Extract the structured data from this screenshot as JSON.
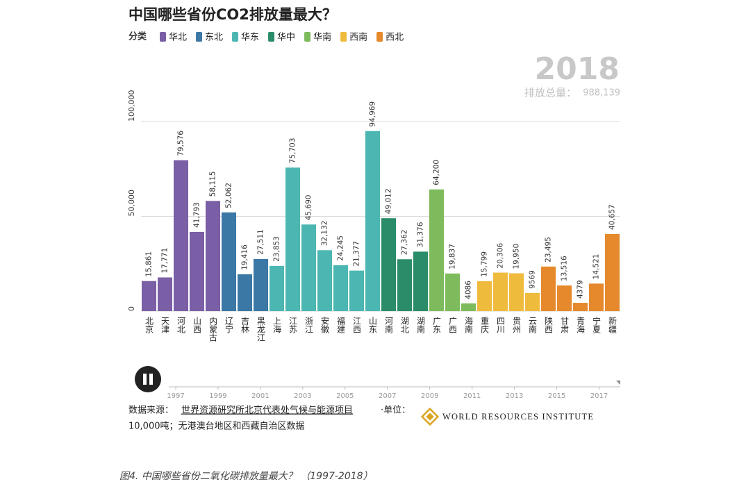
{
  "chart_data": {
    "type": "bar",
    "title": "中国哪些省份CO2排放量最大？",
    "legend_title": "分类",
    "year": 2018,
    "total_label": "排放总量：",
    "total": {
      "value": 988139,
      "label": "988,139"
    },
    "categories": [
      "北京",
      "天津",
      "河北",
      "山西",
      "内蒙古",
      "辽宁",
      "吉林",
      "黑龙江",
      "上海",
      "江苏",
      "浙江",
      "安徽",
      "福建",
      "江西",
      "山东",
      "河南",
      "湖北",
      "湖南",
      "广东",
      "广西",
      "海南",
      "重庆",
      "四川",
      "贵州",
      "云南",
      "陕西",
      "甘肃",
      "青海",
      "宁夏",
      "新疆"
    ],
    "series": [
      {
        "name": "华北",
        "color": "#7a5ea6",
        "values": [
          15861,
          17771,
          79576,
          41793,
          58115,
          null,
          null,
          null,
          null,
          null,
          null,
          null,
          null,
          null,
          null,
          null,
          null,
          null,
          null,
          null,
          null,
          null,
          null,
          null,
          null,
          null,
          null,
          null,
          null,
          null
        ],
        "value_labels": [
          "15,861",
          "17,771",
          "79,576",
          "41,793",
          "58,115",
          null,
          null,
          null,
          null,
          null,
          null,
          null,
          null,
          null,
          null,
          null,
          null,
          null,
          null,
          null,
          null,
          null,
          null,
          null,
          null,
          null,
          null,
          null,
          null,
          null
        ]
      },
      {
        "name": "东北",
        "color": "#3b78a6",
        "values": [
          null,
          null,
          null,
          null,
          null,
          52062,
          19416,
          27511,
          null,
          null,
          null,
          null,
          null,
          null,
          null,
          null,
          null,
          null,
          null,
          null,
          null,
          null,
          null,
          null,
          null,
          null,
          null,
          null,
          null,
          null
        ],
        "value_labels": [
          null,
          null,
          null,
          null,
          null,
          "52,062",
          "19,416",
          "27,511",
          null,
          null,
          null,
          null,
          null,
          null,
          null,
          null,
          null,
          null,
          null,
          null,
          null,
          null,
          null,
          null,
          null,
          null,
          null,
          null,
          null,
          null
        ]
      },
      {
        "name": "华东",
        "color": "#4cb7b2",
        "values": [
          null,
          null,
          null,
          null,
          null,
          null,
          null,
          null,
          23853,
          75703,
          45690,
          32132,
          24245,
          21377,
          94969,
          null,
          null,
          null,
          null,
          null,
          null,
          null,
          null,
          null,
          null,
          null,
          null,
          null,
          null,
          null
        ],
        "value_labels": [
          null,
          null,
          null,
          null,
          null,
          null,
          null,
          null,
          "23,853",
          "75,703",
          "45,690",
          "32,132",
          "24,245",
          "21,377",
          "94,969",
          null,
          null,
          null,
          null,
          null,
          null,
          null,
          null,
          null,
          null,
          null,
          null,
          null,
          null,
          null
        ]
      },
      {
        "name": "华中",
        "color": "#2a8c68",
        "values": [
          null,
          null,
          null,
          null,
          null,
          null,
          null,
          null,
          null,
          null,
          null,
          null,
          null,
          null,
          null,
          49012,
          27362,
          31376,
          null,
          null,
          null,
          null,
          null,
          null,
          null,
          null,
          null,
          null,
          null,
          null
        ],
        "value_labels": [
          null,
          null,
          null,
          null,
          null,
          null,
          null,
          null,
          null,
          null,
          null,
          null,
          null,
          null,
          null,
          "49,012",
          "27,362",
          "31,376",
          null,
          null,
          null,
          null,
          null,
          null,
          null,
          null,
          null,
          null,
          null,
          null
        ]
      },
      {
        "name": "华南",
        "color": "#7dbb5c",
        "values": [
          null,
          null,
          null,
          null,
          null,
          null,
          null,
          null,
          null,
          null,
          null,
          null,
          null,
          null,
          null,
          null,
          null,
          null,
          64200,
          19837,
          4086,
          null,
          null,
          null,
          null,
          null,
          null,
          null,
          null,
          null
        ],
        "value_labels": [
          null,
          null,
          null,
          null,
          null,
          null,
          null,
          null,
          null,
          null,
          null,
          null,
          null,
          null,
          null,
          null,
          null,
          null,
          "64,200",
          "19,837",
          "4086",
          null,
          null,
          null,
          null,
          null,
          null,
          null,
          null,
          null
        ]
      },
      {
        "name": "西南",
        "color": "#efbb3d",
        "values": [
          null,
          null,
          null,
          null,
          null,
          null,
          null,
          null,
          null,
          null,
          null,
          null,
          null,
          null,
          null,
          null,
          null,
          null,
          null,
          null,
          null,
          15799,
          20306,
          19950,
          9569,
          null,
          null,
          null,
          null,
          null
        ],
        "value_labels": [
          null,
          null,
          null,
          null,
          null,
          null,
          null,
          null,
          null,
          null,
          null,
          null,
          null,
          null,
          null,
          null,
          null,
          null,
          null,
          null,
          null,
          "15,799",
          "20,306",
          "19,950",
          "9569",
          null,
          null,
          null,
          null,
          null
        ]
      },
      {
        "name": "西北",
        "color": "#e6892c",
        "values": [
          null,
          null,
          null,
          null,
          null,
          null,
          null,
          null,
          null,
          null,
          null,
          null,
          null,
          null,
          null,
          null,
          null,
          null,
          null,
          null,
          null,
          null,
          null,
          null,
          null,
          23495,
          13516,
          4379,
          14521,
          40657
        ],
        "value_labels": [
          null,
          null,
          null,
          null,
          null,
          null,
          null,
          null,
          null,
          null,
          null,
          null,
          null,
          null,
          null,
          null,
          null,
          null,
          null,
          null,
          null,
          null,
          null,
          null,
          null,
          "23,495",
          "13,516",
          "4379",
          "14,521",
          "40,657"
        ]
      }
    ],
    "ylim": [
      0,
      100000
    ],
    "yticks": [
      0,
      {
        "value": 50000,
        "label": "50,000"
      },
      {
        "value": 100000,
        "label": "100,000"
      }
    ],
    "grid": true
  },
  "timeline": {
    "xlim": [
      1997,
      2018
    ],
    "xticks": [
      1997,
      1999,
      2001,
      2003,
      2005,
      2007,
      2009,
      2011,
      2013,
      2015,
      2017
    ]
  },
  "source": {
    "label": "数据来源：",
    "link": "世界资源研究所北京代表处气候与能源项目",
    "note_1": "·单位：",
    "note_2": "10,000吨；无港澳台地区和西藏自治区数据"
  },
  "logo": "WORLD RESOURCES INSTITUTE",
  "caption": "图4. 中国哪些省份二氧化碳排放量最大？ （1997-2018）"
}
